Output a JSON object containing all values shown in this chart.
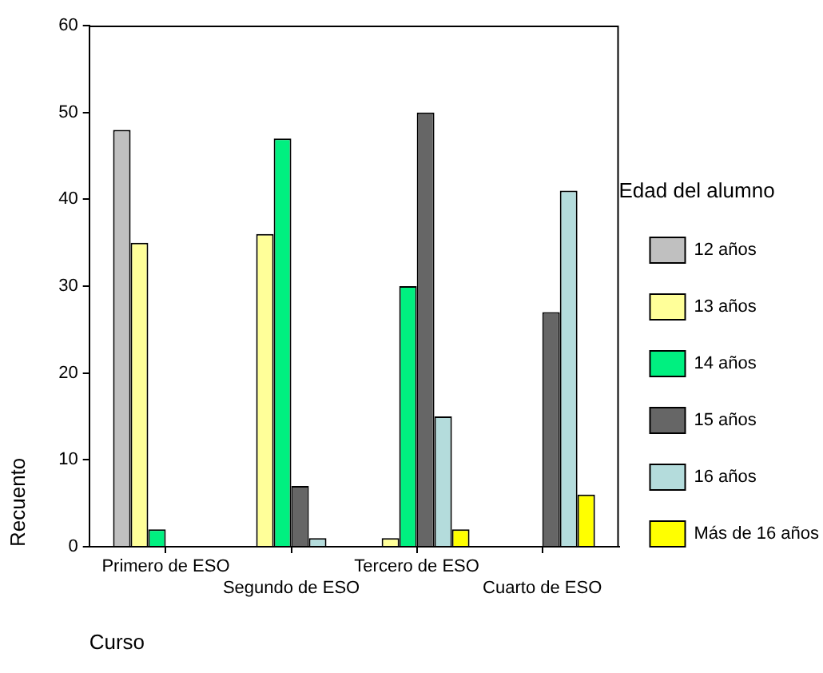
{
  "chart_data": {
    "type": "bar",
    "xlabel": "Curso",
    "ylabel": "Recuento",
    "legend_title": "Edad del alumno",
    "categories": [
      "Primero de ESO",
      "Segundo de ESO",
      "Tercero de ESO",
      "Cuarto de ESO"
    ],
    "series": [
      {
        "name": "12 años",
        "color": "#c0c0c0",
        "values": [
          48,
          null,
          null,
          null
        ]
      },
      {
        "name": "13 años",
        "color": "#ffff99",
        "values": [
          35,
          36,
          1,
          null
        ]
      },
      {
        "name": "14 años",
        "color": "#00f080",
        "values": [
          2,
          47,
          30,
          null
        ]
      },
      {
        "name": "15 años",
        "color": "#666666",
        "values": [
          null,
          7,
          50,
          27
        ]
      },
      {
        "name": "16 años",
        "color": "#b4dcdc",
        "values": [
          null,
          1,
          15,
          41
        ]
      },
      {
        "name": "Más de 16 años",
        "color": "#ffff00",
        "values": [
          null,
          null,
          2,
          6
        ]
      }
    ],
    "ylim": [
      0,
      60
    ],
    "yticks": [
      0,
      10,
      20,
      30,
      40,
      50,
      60
    ],
    "grid": false,
    "legend": "right"
  }
}
